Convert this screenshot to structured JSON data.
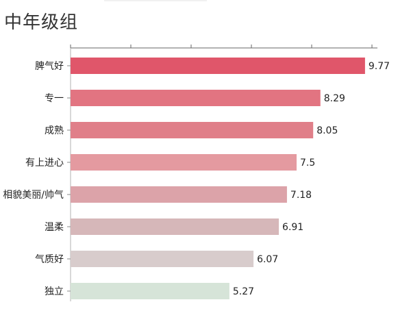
{
  "chart_data": {
    "type": "bar",
    "orientation": "horizontal",
    "title": "中年级组",
    "categories": [
      "脾气好",
      "专一",
      "成熟",
      "有上进心",
      "相貌美丽/帅气",
      "温柔",
      "气质好",
      "独立"
    ],
    "values": [
      9.77,
      8.29,
      8.05,
      7.5,
      7.18,
      6.91,
      6.07,
      5.27
    ],
    "value_labels": [
      "9.77",
      "8.29",
      "8.05",
      "7.5",
      "7.18",
      "6.91",
      "6.07",
      "5.27"
    ],
    "bar_colors": [
      "#e0566a",
      "#e27481",
      "#e07f89",
      "#e49aa0",
      "#dca3a9",
      "#d6b7b9",
      "#d8cccc",
      "#d6e4d8"
    ],
    "xlim": [
      0,
      10
    ],
    "grid": false,
    "legend": "none",
    "xlabel": "",
    "ylabel": ""
  }
}
